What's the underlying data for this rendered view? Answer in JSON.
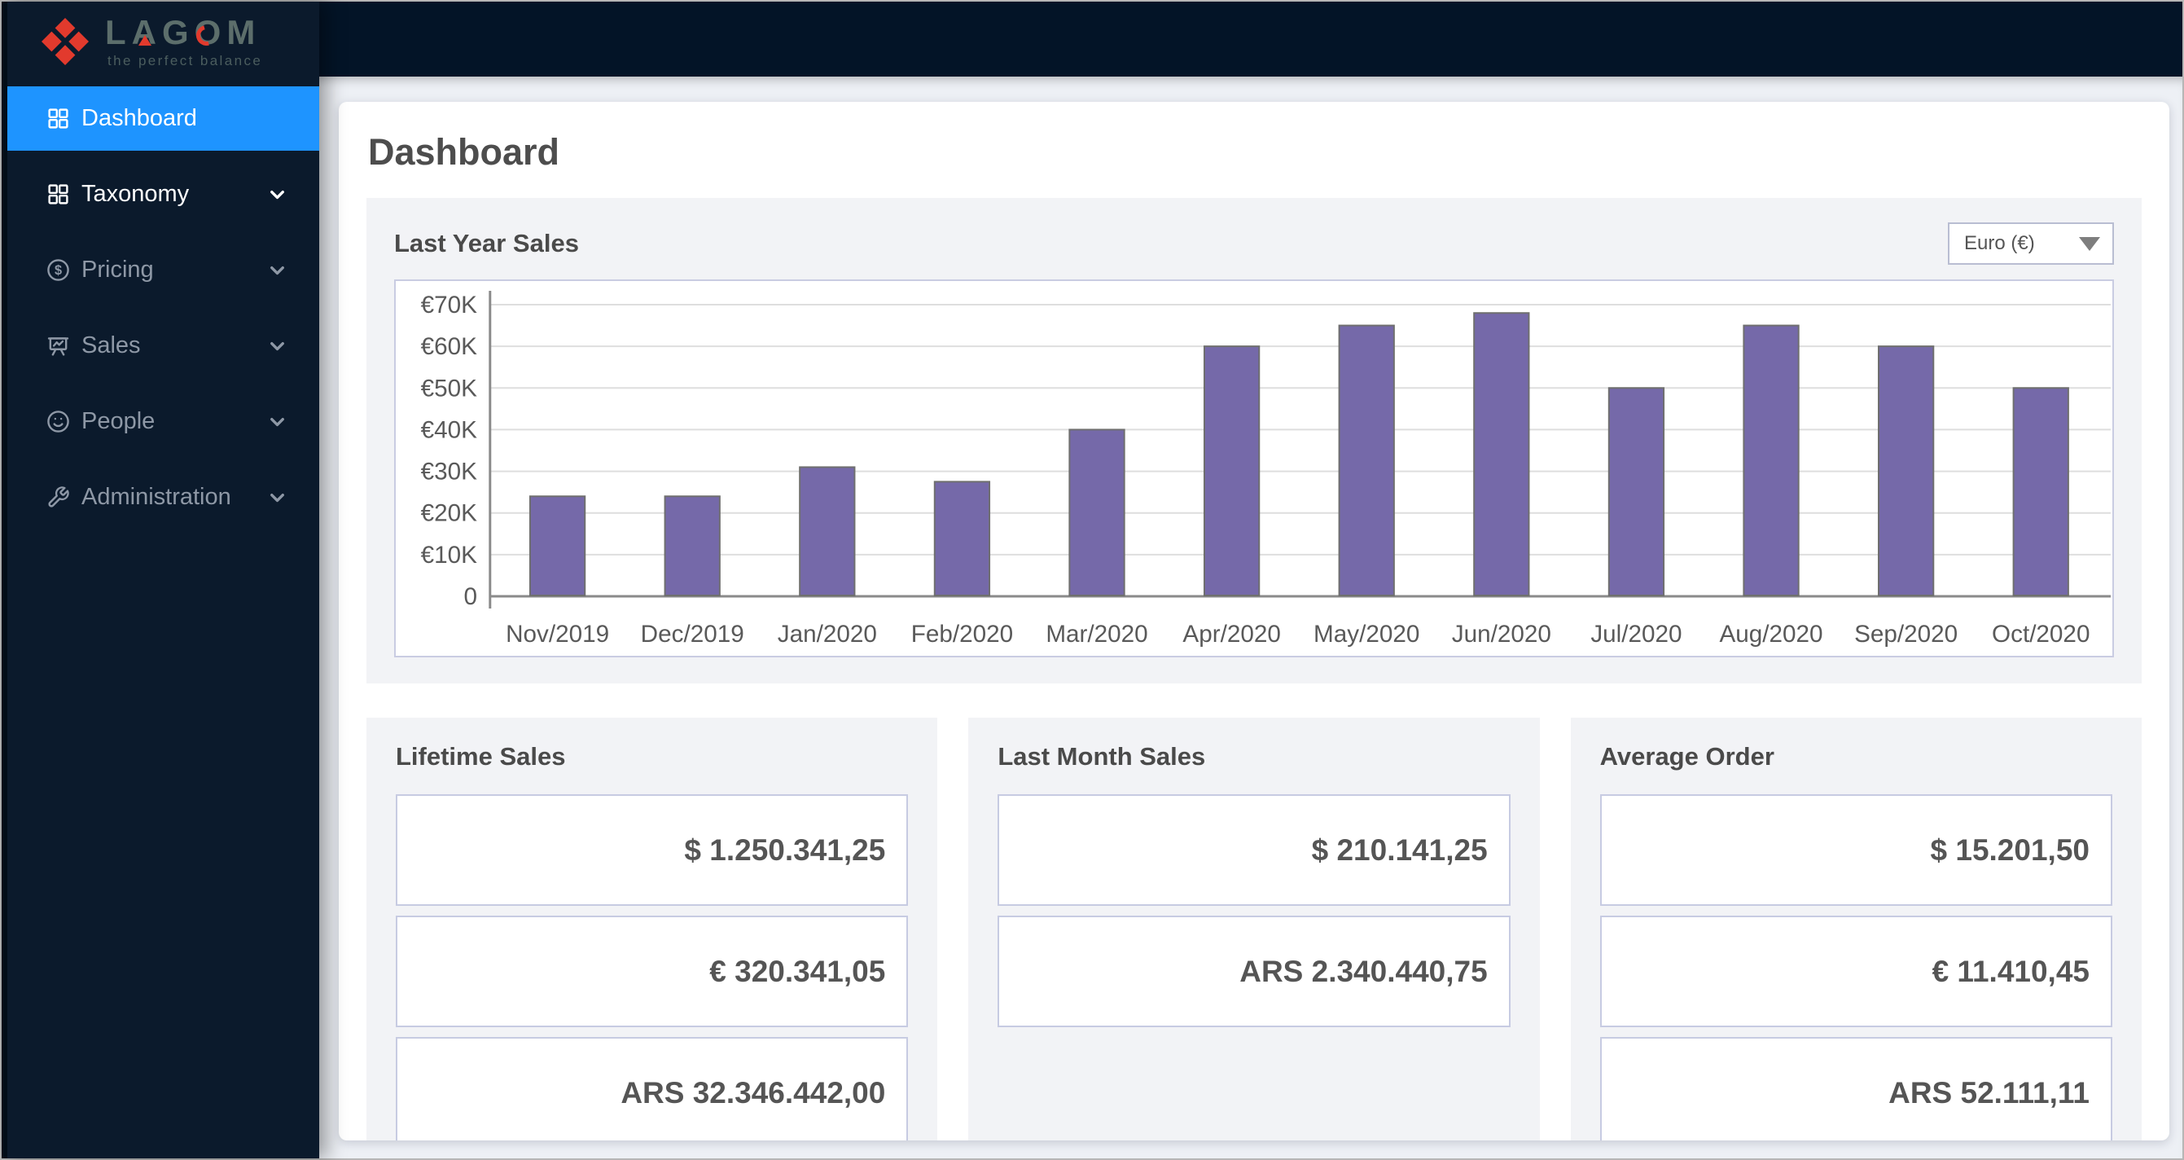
{
  "brand": {
    "name": "LAGOM",
    "tagline": "the perfect balance",
    "logo_red": "#e23a2d",
    "text_color": "#5c6e6b"
  },
  "sidebar": {
    "items": [
      {
        "label": "Dashboard",
        "icon": "grid-icon",
        "active": true,
        "bright": false,
        "expandable": false
      },
      {
        "label": "Taxonomy",
        "icon": "grid-icon",
        "active": false,
        "bright": true,
        "expandable": true
      },
      {
        "label": "Pricing",
        "icon": "dollar-icon",
        "active": false,
        "bright": false,
        "expandable": true
      },
      {
        "label": "Sales",
        "icon": "presentation-icon",
        "active": false,
        "bright": false,
        "expandable": true
      },
      {
        "label": "People",
        "icon": "smiley-icon",
        "active": false,
        "bright": false,
        "expandable": true
      },
      {
        "label": "Administration",
        "icon": "wrench-icon",
        "active": false,
        "bright": false,
        "expandable": true
      }
    ]
  },
  "page": {
    "title": "Dashboard"
  },
  "chart_card": {
    "title": "Last Year Sales",
    "currency_dropdown": {
      "value": "Euro (€)"
    }
  },
  "chart_data": {
    "type": "bar",
    "title": "Last Year Sales",
    "categories": [
      "Nov/2019",
      "Dec/2019",
      "Jan/2020",
      "Feb/2020",
      "Mar/2020",
      "Apr/2020",
      "May/2020",
      "Jun/2020",
      "Jul/2020",
      "Aug/2020",
      "Sep/2020",
      "Oct/2020"
    ],
    "values": [
      24000,
      24000,
      31000,
      27500,
      40000,
      60000,
      65000,
      68000,
      50000,
      65000,
      60000,
      50000
    ],
    "currency": "EUR",
    "yticks": [
      {
        "label": "€70K",
        "value": 70000
      },
      {
        "label": "€60K",
        "value": 60000
      },
      {
        "label": "€50K",
        "value": 50000
      },
      {
        "label": "€40K",
        "value": 40000
      },
      {
        "label": "€30K",
        "value": 30000
      },
      {
        "label": "€20K",
        "value": 20000
      },
      {
        "label": "€10K",
        "value": 10000
      },
      {
        "label": "0",
        "value": 0
      }
    ],
    "ylim": [
      0,
      73000
    ],
    "grid": true,
    "legend": false,
    "bar_color": "#7569a9",
    "bar_border_color": "#6f6f6f",
    "axis_color": "#8a8a8a",
    "grid_color": "#dedede",
    "label_color": "#595959"
  },
  "cards": [
    {
      "title": "Lifetime Sales",
      "values": [
        "$ 1.250.341,25",
        "€ 320.341,05",
        "ARS 32.346.442,00"
      ]
    },
    {
      "title": "Last Month Sales",
      "values": [
        "$ 210.141,25",
        "ARS 2.340.440,75"
      ]
    },
    {
      "title": "Average Order",
      "values": [
        "$ 15.201,50",
        "€ 11.410,45",
        "ARS 52.111,11"
      ]
    }
  ],
  "colors": {
    "accent_blue": "#1e94ff",
    "sidebar_bg": "#0b1a2c",
    "topbar_bg": "#031427",
    "panel_bg": "#ffffff",
    "card_bg": "#f2f3f6",
    "value_border": "#c7cbe2",
    "inactive_text": "#8e98a6"
  }
}
